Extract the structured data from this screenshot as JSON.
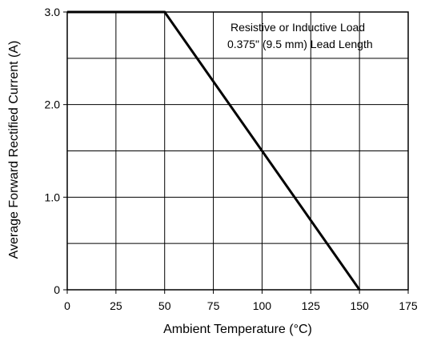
{
  "chart_data": {
    "type": "line",
    "title": "",
    "xlabel": "Ambient Temperature (°C)",
    "ylabel": "Average Forward Rectified Current (A)",
    "xlim": [
      0,
      175
    ],
    "ylim": [
      0,
      3.0
    ],
    "x_ticks": [
      "0",
      "25",
      "50",
      "75",
      "100",
      "125",
      "150",
      "175"
    ],
    "y_ticks": [
      "0",
      "1.0",
      "2.0",
      "3.0"
    ],
    "grid": true,
    "annotations": [
      "Resistive or Inductive Load",
      "0.375\" (9.5 mm) Lead Length"
    ],
    "series": [
      {
        "x": [
          0,
          50,
          150
        ],
        "y": [
          3.0,
          3.0,
          0
        ],
        "color": "#000000"
      }
    ]
  }
}
